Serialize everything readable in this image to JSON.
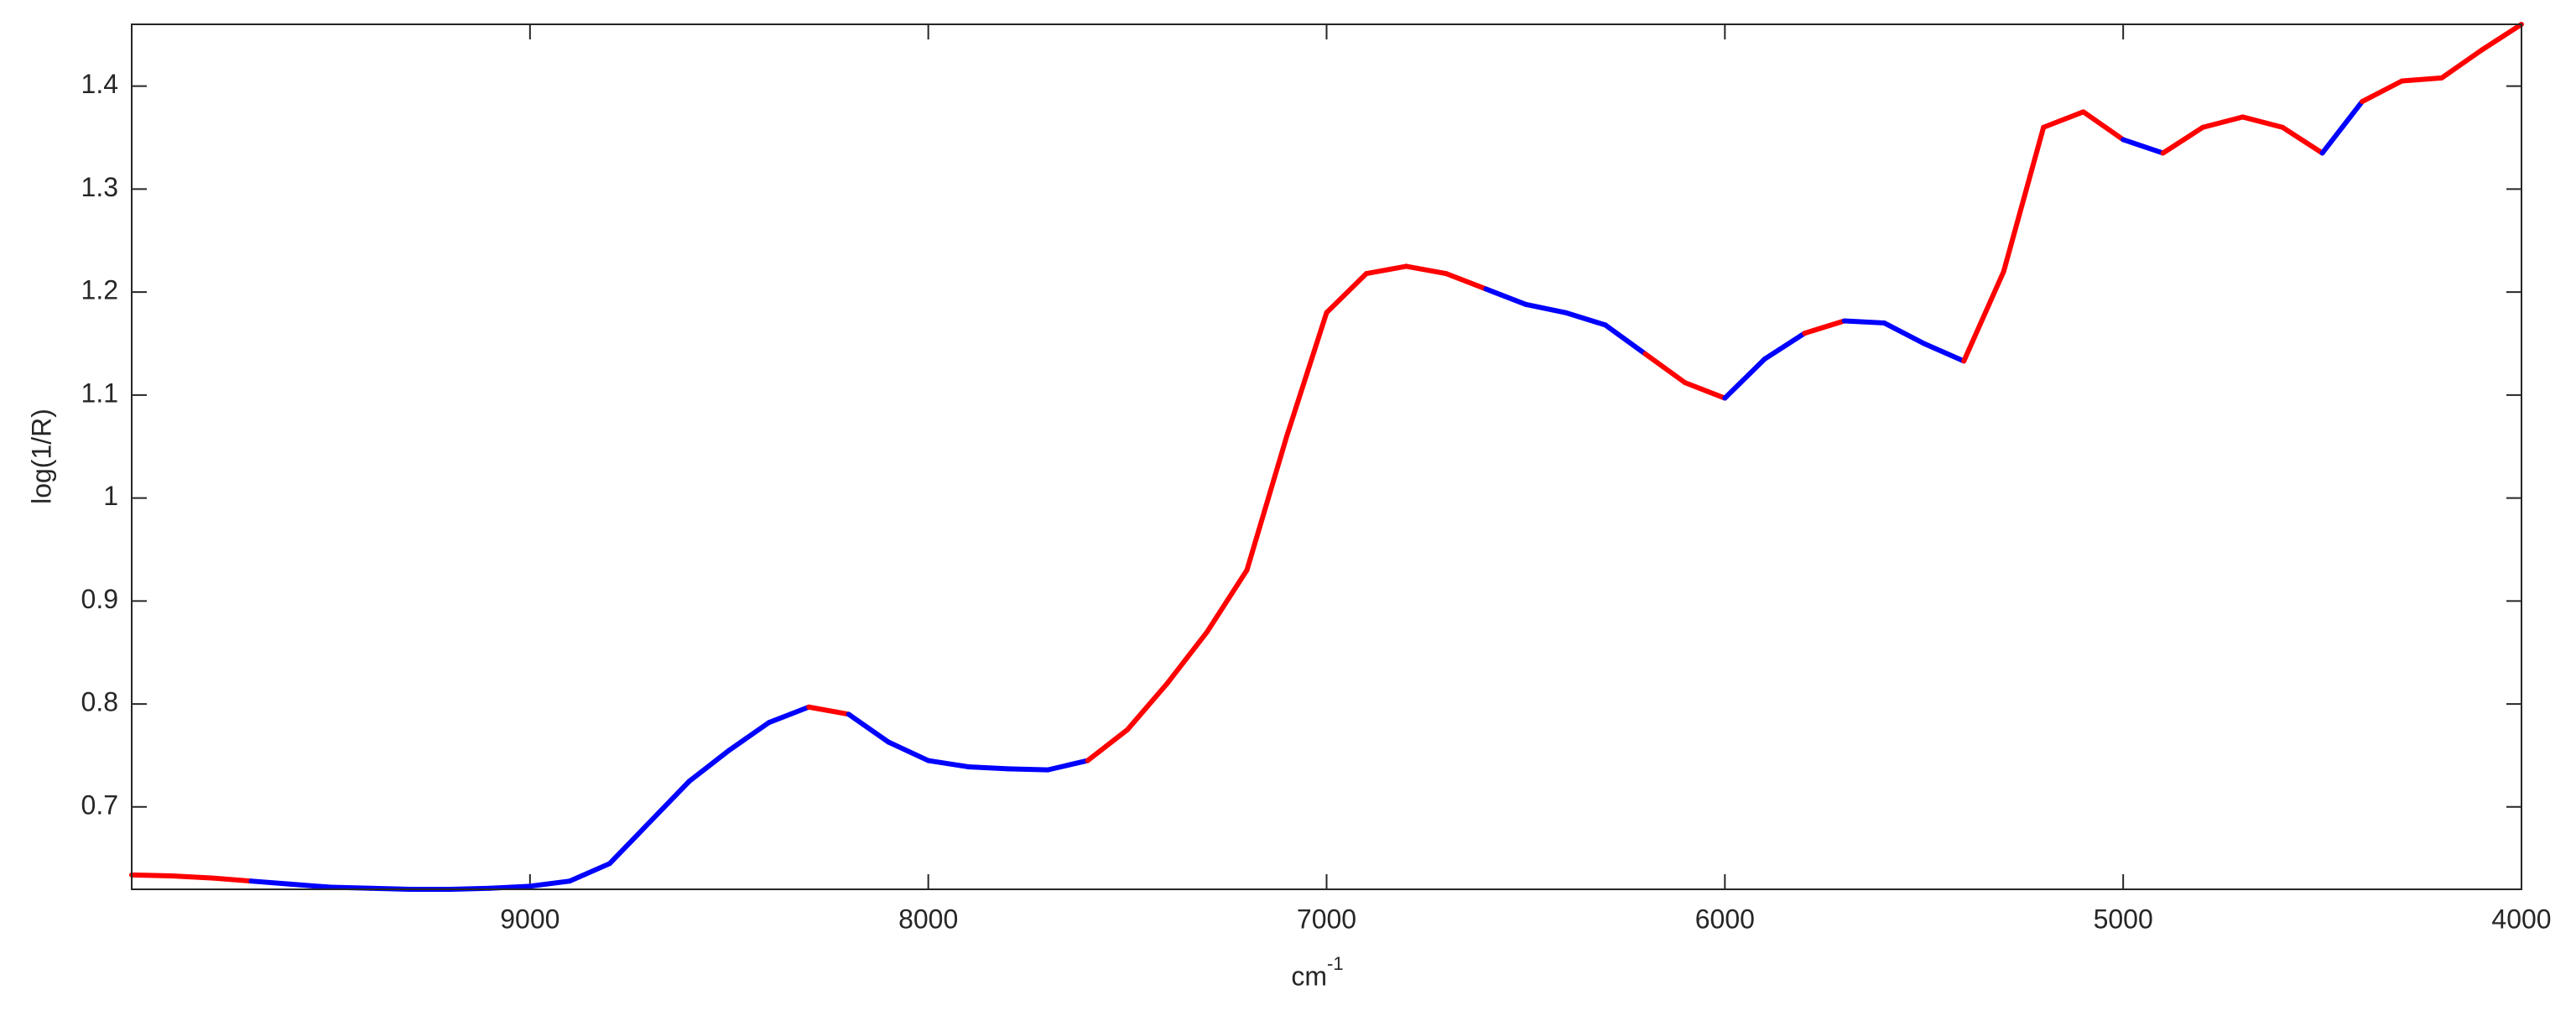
{
  "chart_data": {
    "type": "line",
    "ylabel": "log(1/R)",
    "xlabel": "cm",
    "xlabel_superscript": "-1",
    "x": [
      10000,
      9900,
      9800,
      9700,
      9600,
      9500,
      9400,
      9300,
      9200,
      9100,
      9000,
      8900,
      8800,
      8700,
      8600,
      8500,
      8400,
      8300,
      8200,
      8100,
      8000,
      7900,
      7800,
      7700,
      7600,
      7500,
      7400,
      7300,
      7200,
      7100,
      7000,
      6900,
      6800,
      6700,
      6600,
      6500,
      6400,
      6300,
      6200,
      6100,
      6000,
      5900,
      5800,
      5700,
      5600,
      5500,
      5400,
      5300,
      5200,
      5100,
      5000,
      4900,
      4800,
      4700,
      4600,
      4500,
      4400,
      4300,
      4200,
      4100,
      4000
    ],
    "values": [
      0.634,
      0.633,
      0.631,
      0.628,
      0.625,
      0.622,
      0.621,
      0.62,
      0.62,
      0.621,
      0.623,
      0.628,
      0.645,
      0.685,
      0.725,
      0.755,
      0.782,
      0.797,
      0.79,
      0.763,
      0.745,
      0.739,
      0.737,
      0.736,
      0.745,
      0.775,
      0.82,
      0.87,
      0.93,
      1.06,
      1.18,
      1.218,
      1.225,
      1.218,
      1.203,
      1.188,
      1.18,
      1.168,
      1.14,
      1.112,
      1.097,
      1.135,
      1.16,
      1.172,
      1.17,
      1.15,
      1.133,
      1.22,
      1.36,
      1.375,
      1.348,
      1.335,
      1.36,
      1.37,
      1.36,
      1.335,
      1.385,
      1.405,
      1.408,
      1.435,
      1.46
    ],
    "point_colors": [
      "#ff0000",
      "#ff0000",
      "#ff0000",
      "#0000ff",
      "#0000ff",
      "#0000ff",
      "#0000ff",
      "#0000ff",
      "#0000ff",
      "#0000ff",
      "#0000ff",
      "#0000ff",
      "#0000ff",
      "#0000ff",
      "#0000ff",
      "#0000ff",
      "#0000ff",
      "#ff0000",
      "#0000ff",
      "#0000ff",
      "#0000ff",
      "#0000ff",
      "#0000ff",
      "#0000ff",
      "#ff0000",
      "#ff0000",
      "#ff0000",
      "#ff0000",
      "#ff0000",
      "#ff0000",
      "#ff0000",
      "#ff0000",
      "#ff0000",
      "#ff0000",
      "#0000ff",
      "#0000ff",
      "#0000ff",
      "#0000ff",
      "#ff0000",
      "#ff0000",
      "#0000ff",
      "#0000ff",
      "#ff0000",
      "#0000ff",
      "#0000ff",
      "#0000ff",
      "#ff0000",
      "#ff0000",
      "#ff0000",
      "#ff0000",
      "#0000ff",
      "#ff0000",
      "#ff0000",
      "#ff0000",
      "#ff0000",
      "#0000ff",
      "#ff0000",
      "#ff0000",
      "#ff0000",
      "#ff0000",
      "#ff0000"
    ],
    "xlim": [
      10000,
      4000
    ],
    "xticks": [
      9000,
      8000,
      7000,
      6000,
      5000,
      4000
    ],
    "ylim": [
      0.62,
      1.46
    ],
    "yticks": [
      0.7,
      0.8,
      0.9,
      1,
      1.1,
      1.2,
      1.3,
      1.4
    ],
    "box": true
  }
}
